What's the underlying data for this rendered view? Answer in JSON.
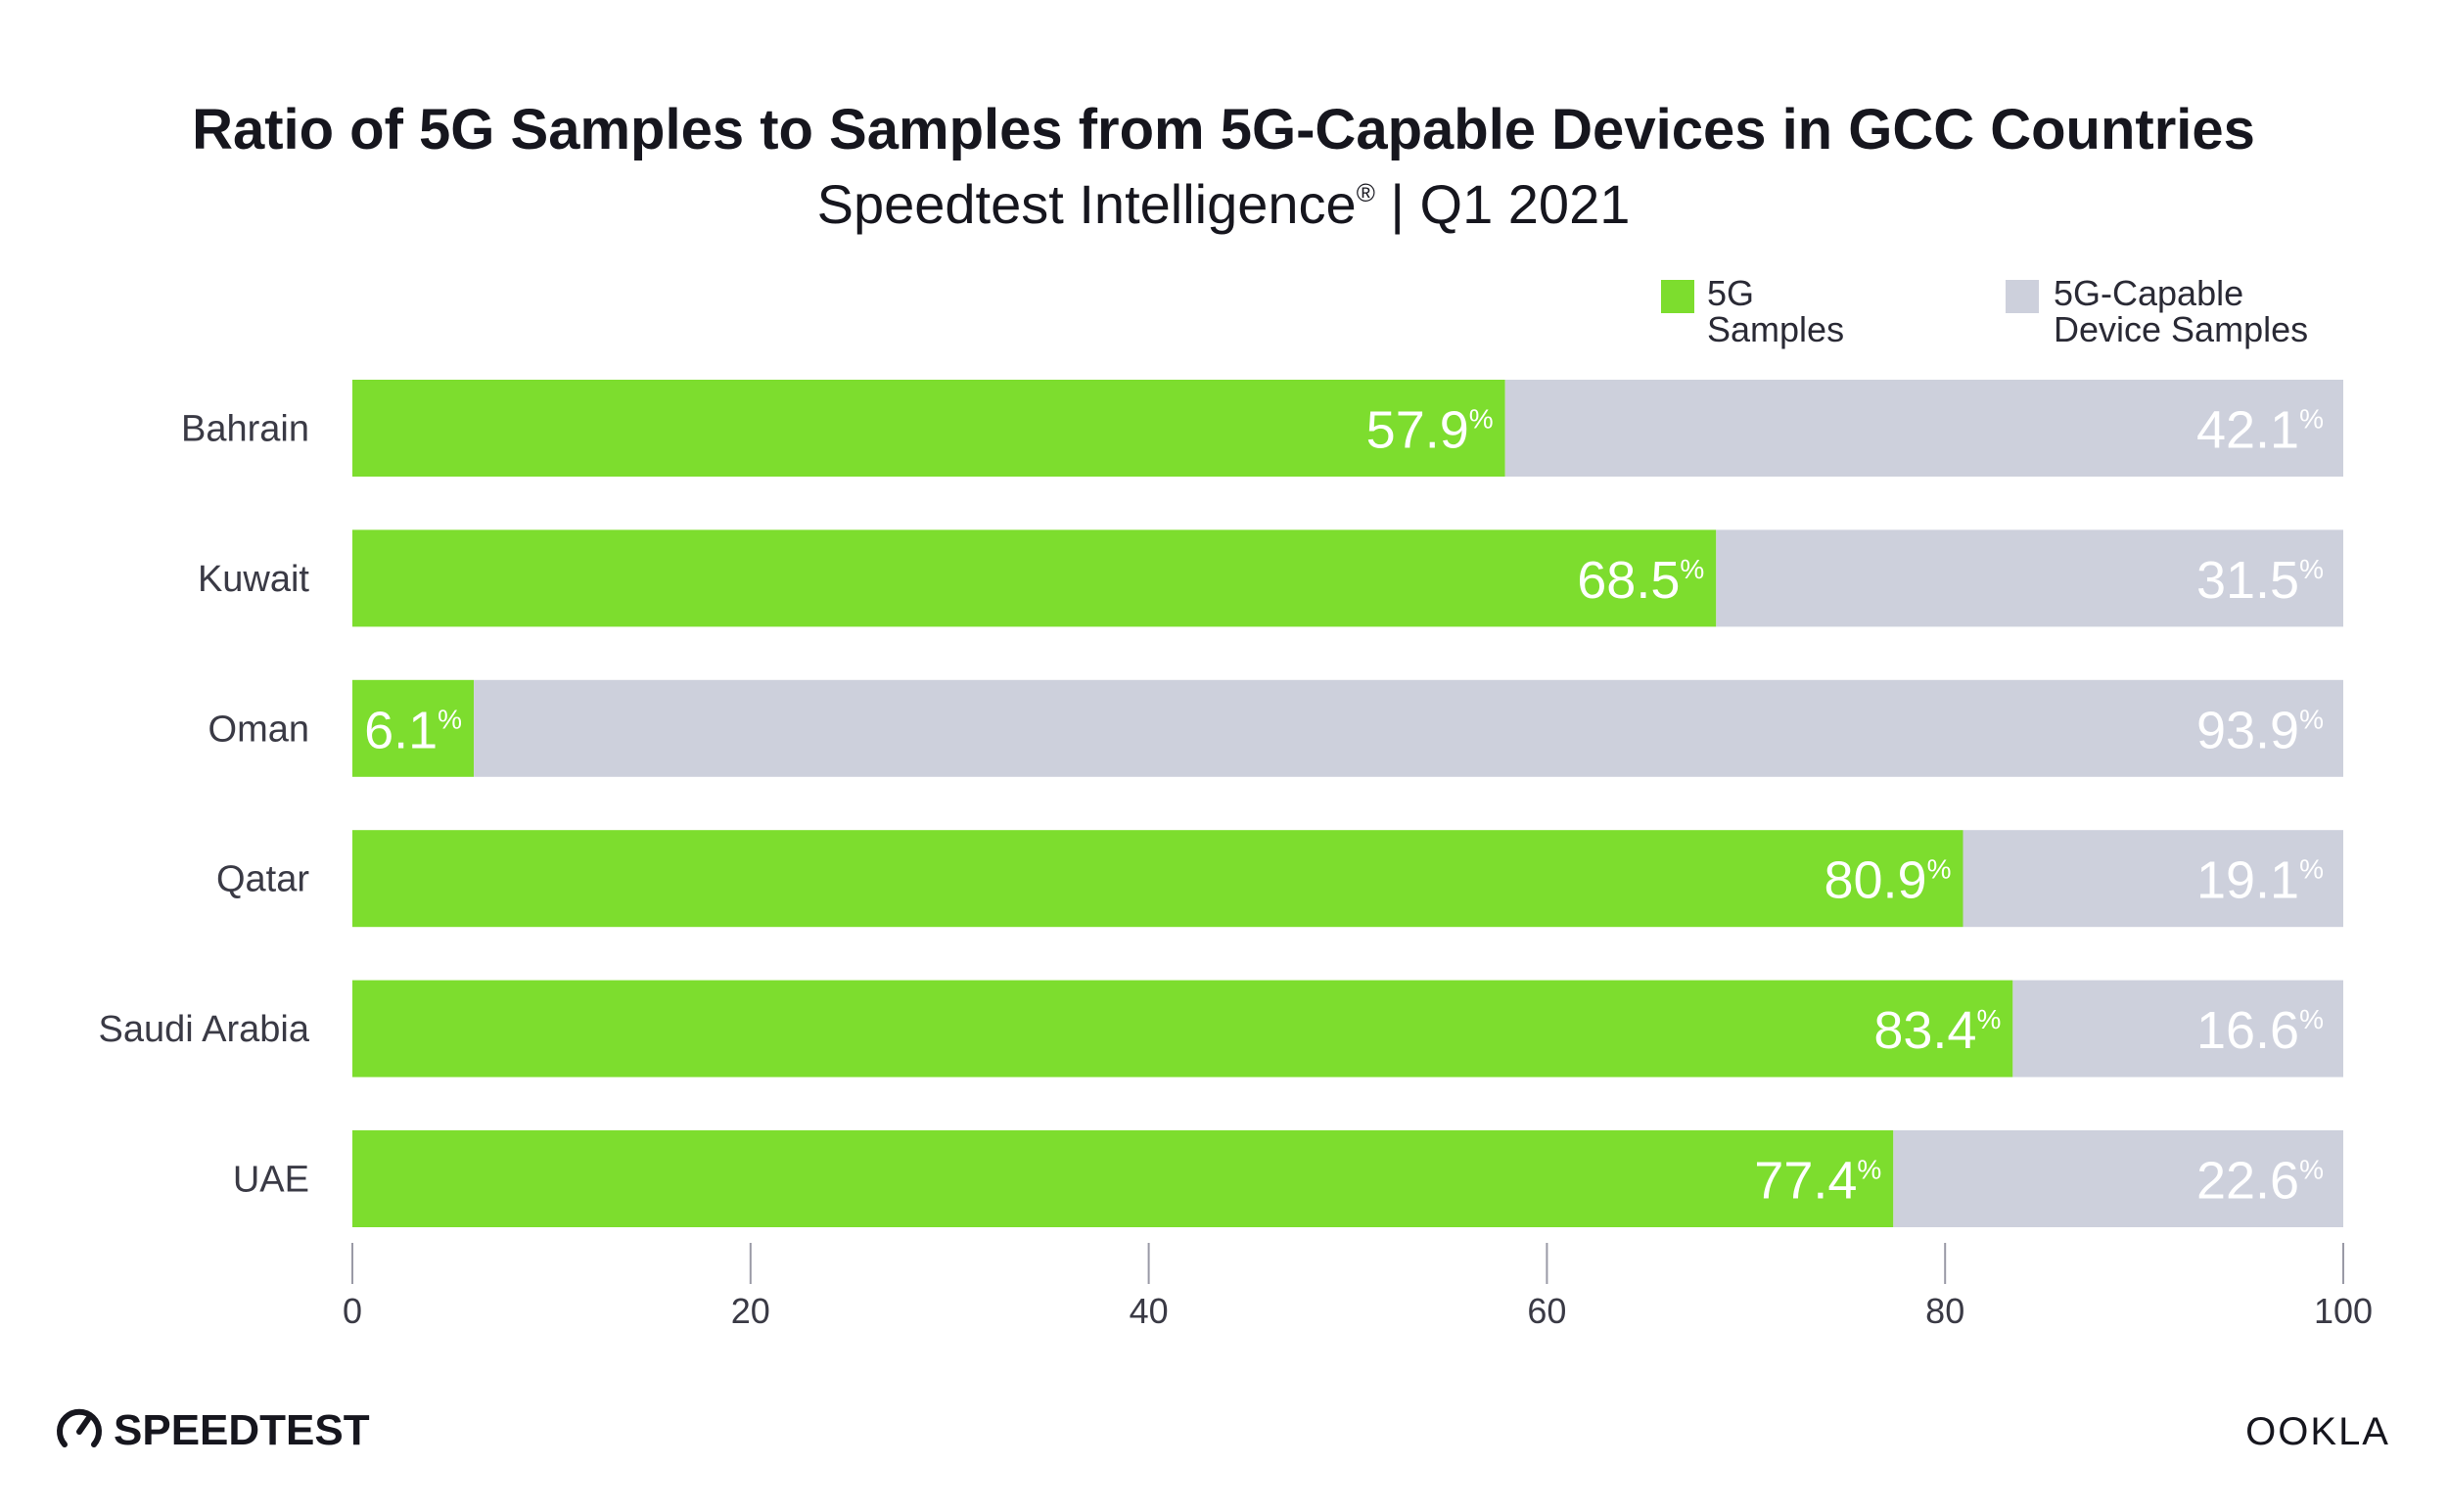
{
  "colors": {
    "primary": "#7ddd2e",
    "secondary": "#cdd0dc",
    "text": "#16161e",
    "axis": "#9a9aa6"
  },
  "chart_data": {
    "type": "bar",
    "orientation": "horizontal",
    "stacked": true,
    "title": "Ratio of 5G Samples to Samples from 5G-Capable Devices in GCC Countries",
    "subtitle_main": "Speedtest Intelligence",
    "subtitle_mark": "®",
    "subtitle_rest": " | Q1 2021",
    "categories": [
      "Bahrain",
      "Kuwait",
      "Oman",
      "Qatar",
      "Saudi Arabia",
      "UAE"
    ],
    "series": [
      {
        "name": "5G Samples",
        "legend_lines": [
          "5G",
          "Samples"
        ],
        "color": "#7ddd2e",
        "values": [
          57.9,
          68.5,
          6.1,
          80.9,
          83.4,
          77.4
        ],
        "labels": [
          "57.9",
          "68.5",
          "6.1",
          "80.9",
          "83.4",
          "77.4"
        ]
      },
      {
        "name": "5G-Capable Device Samples",
        "legend_lines": [
          "5G-Capable",
          "Device Samples"
        ],
        "color": "#cdd0dc",
        "values": [
          42.1,
          31.5,
          93.9,
          19.1,
          16.6,
          22.6
        ],
        "labels": [
          "42.1",
          "31.5",
          "93.9",
          "19.1",
          "16.6",
          "22.6"
        ]
      }
    ],
    "value_suffix": "%",
    "xlim": [
      0,
      100
    ],
    "xticks": [
      0,
      20,
      40,
      60,
      80,
      100
    ],
    "tick_labels": [
      "0",
      "20",
      "40",
      "60",
      "80",
      "100"
    ],
    "grid": false,
    "legend_position": "top-right"
  },
  "branding": {
    "left_logo": "SPEEDTEST",
    "left_logo_icon": "gauge-icon",
    "right_logo": "OOKLA"
  }
}
